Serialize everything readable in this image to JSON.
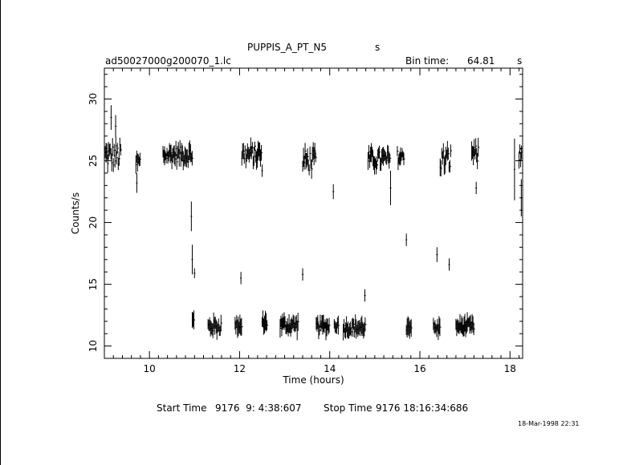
{
  "header": {
    "object": "PUPPIS_A_PT_N5",
    "object_unit": "s",
    "filename": "ad50027000g200070_1.lc",
    "bin_label": "Bin time:",
    "bin_value": "64.81",
    "bin_unit": "s"
  },
  "footer": {
    "start_label": "Start Time",
    "start_value": "9176  9: 4:38:607",
    "stop_label": "Stop Time",
    "stop_value": "9176 18:16:34:686",
    "date_stamp": "18-Mar-1998 22:31"
  },
  "colors": {
    "foreground": "#000000",
    "background": "#ffffff"
  },
  "chart_data": {
    "type": "scatter",
    "title": "PUPPIS_A_PT_N5",
    "xlabel": "Time (hours)",
    "ylabel": "Counts/s",
    "xlim": [
      9.0,
      18.28
    ],
    "ylim": [
      9.0,
      32.5
    ],
    "xticks": [
      10,
      12,
      14,
      16,
      18
    ],
    "yticks": [
      10,
      15,
      20,
      25,
      30
    ],
    "xtick_labels": [
      "10",
      "12",
      "14",
      "16",
      "18"
    ],
    "ytick_labels": [
      "10",
      "15",
      "20",
      "25",
      "30"
    ],
    "grid": false,
    "legend": "none",
    "series": [
      {
        "segments": [
          {
            "t0": 9.02,
            "t1": 9.38,
            "level": 25.4,
            "spread": 1.6
          },
          {
            "t0": 9.7,
            "t1": 9.8,
            "level": 24.8,
            "spread": 1.4
          },
          {
            "t0": 10.3,
            "t1": 10.95,
            "level": 25.5,
            "spread": 1.0
          },
          {
            "t0": 10.95,
            "t1": 10.99,
            "level": 12.0,
            "spread": 0.6
          },
          {
            "t0": 11.3,
            "t1": 11.6,
            "level": 11.6,
            "spread": 0.8
          },
          {
            "t0": 11.9,
            "t1": 12.05,
            "level": 11.7,
            "spread": 0.6
          },
          {
            "t0": 12.05,
            "t1": 12.5,
            "level": 25.5,
            "spread": 1.2
          },
          {
            "t0": 12.5,
            "t1": 12.62,
            "level": 11.9,
            "spread": 0.6
          },
          {
            "t0": 12.9,
            "t1": 13.3,
            "level": 11.7,
            "spread": 0.8
          },
          {
            "t0": 13.4,
            "t1": 13.7,
            "level": 25.0,
            "spread": 1.4
          },
          {
            "t0": 13.7,
            "t1": 14.0,
            "level": 11.6,
            "spread": 0.7
          },
          {
            "t0": 14.1,
            "t1": 14.2,
            "level": 11.7,
            "spread": 0.5
          },
          {
            "t0": 14.3,
            "t1": 14.8,
            "level": 11.5,
            "spread": 0.7
          },
          {
            "t0": 14.85,
            "t1": 15.35,
            "level": 25.1,
            "spread": 1.1
          },
          {
            "t0": 15.5,
            "t1": 15.65,
            "level": 25.3,
            "spread": 0.9
          },
          {
            "t0": 15.7,
            "t1": 15.82,
            "level": 11.6,
            "spread": 0.6
          },
          {
            "t0": 16.3,
            "t1": 16.45,
            "level": 11.4,
            "spread": 0.8
          },
          {
            "t0": 16.45,
            "t1": 16.7,
            "level": 25.1,
            "spread": 1.5
          },
          {
            "t0": 16.8,
            "t1": 17.2,
            "level": 11.6,
            "spread": 0.6
          },
          {
            "t0": 17.15,
            "t1": 17.3,
            "level": 25.5,
            "spread": 1.2
          },
          {
            "t0": 18.2,
            "t1": 18.27,
            "level": 25.5,
            "spread": 1.5
          }
        ],
        "points": [
          {
            "x": 9.15,
            "y": 28.5,
            "err": 1.0
          },
          {
            "x": 9.25,
            "y": 27.8,
            "err": 0.9
          },
          {
            "x": 9.72,
            "y": 23.2,
            "err": 0.8
          },
          {
            "x": 10.93,
            "y": 20.5,
            "err": 1.2
          },
          {
            "x": 10.95,
            "y": 17.0,
            "err": 1.2
          },
          {
            "x": 11.0,
            "y": 15.9,
            "err": 0.4
          },
          {
            "x": 12.03,
            "y": 15.5,
            "err": 0.5
          },
          {
            "x": 12.5,
            "y": 24.2,
            "err": 0.5
          },
          {
            "x": 13.4,
            "y": 15.8,
            "err": 0.5
          },
          {
            "x": 14.08,
            "y": 22.5,
            "err": 0.6
          },
          {
            "x": 14.78,
            "y": 14.1,
            "err": 0.5
          },
          {
            "x": 15.35,
            "y": 22.8,
            "err": 1.4
          },
          {
            "x": 15.7,
            "y": 18.6,
            "err": 0.5
          },
          {
            "x": 16.38,
            "y": 17.4,
            "err": 0.6
          },
          {
            "x": 16.65,
            "y": 16.6,
            "err": 0.5
          },
          {
            "x": 17.25,
            "y": 22.8,
            "err": 0.5
          },
          {
            "x": 18.1,
            "y": 24.3,
            "err": 2.5
          },
          {
            "x": 18.25,
            "y": 22.0,
            "err": 1.5
          }
        ]
      }
    ]
  }
}
